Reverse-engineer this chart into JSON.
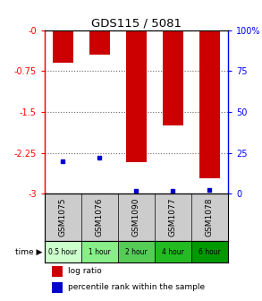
{
  "title": "GDS115 / 5081",
  "samples": [
    "GSM1075",
    "GSM1076",
    "GSM1090",
    "GSM1077",
    "GSM1078"
  ],
  "time_labels": [
    "0.5 hour",
    "1 hour",
    "2 hour",
    "4 hour",
    "6 hour"
  ],
  "log_ratios": [
    -0.6,
    -0.45,
    -2.42,
    -1.75,
    -2.72
  ],
  "percentile_ranks": [
    20.0,
    22.0,
    2.0,
    2.0,
    2.5
  ],
  "ylim_left": [
    -3.0,
    0.0
  ],
  "ylim_right": [
    0.0,
    100.0
  ],
  "yticks_left": [
    0,
    -0.75,
    -1.5,
    -2.25,
    -3.0
  ],
  "yticks_left_labels": [
    "-0",
    "-0.75",
    "-1.5",
    "-2.25",
    "-3"
  ],
  "yticks_right": [
    100,
    75,
    50,
    25,
    0
  ],
  "yticks_right_labels": [
    "100%",
    "75",
    "50",
    "25",
    "0"
  ],
  "bar_color": "#cc0000",
  "percentile_color": "#0000cc",
  "grid_color": "#666666",
  "sample_bg_color": "#cccccc",
  "bar_width": 0.55,
  "time_green_shades": [
    "#ccffcc",
    "#88ee88",
    "#55cc55",
    "#22bb22",
    "#009900"
  ],
  "legend_bar_label": "log ratio",
  "legend_pct_label": "percentile rank within the sample"
}
